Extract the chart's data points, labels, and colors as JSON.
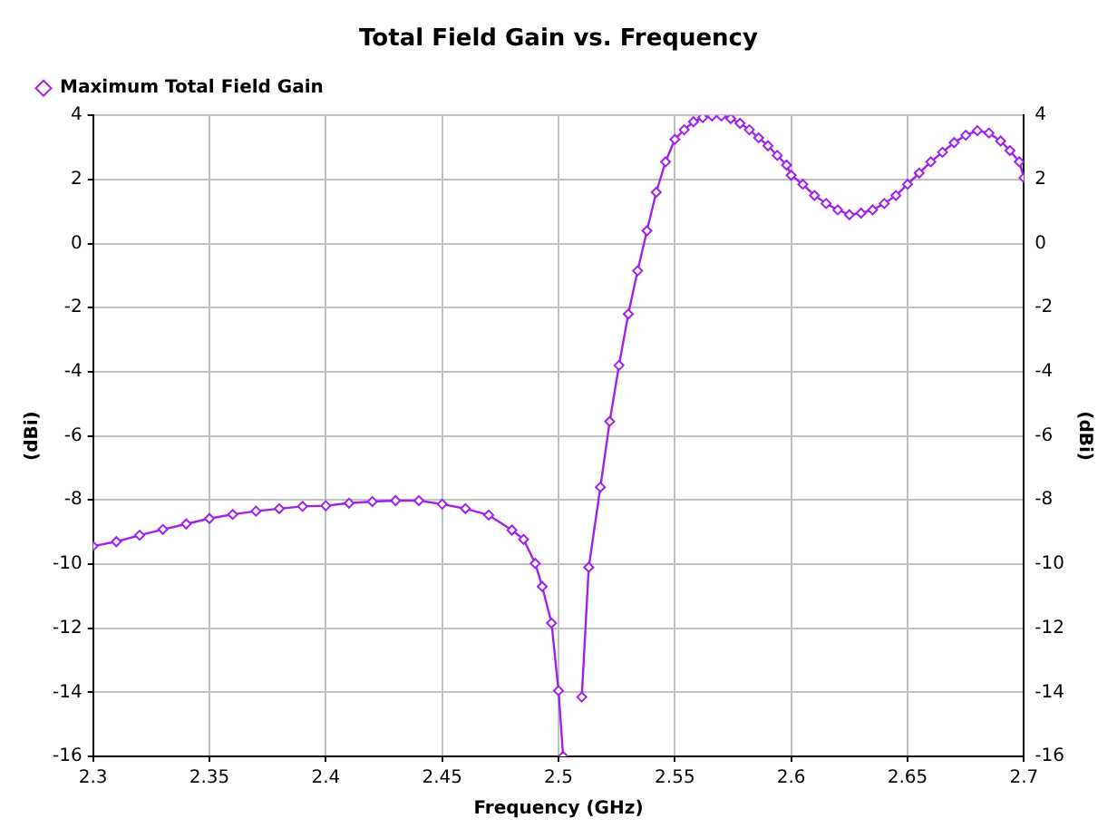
{
  "chart_data": {
    "type": "line",
    "title": "Total Field Gain vs. Frequency",
    "xlabel": "Frequency (GHz)",
    "ylabel": "(dBi)",
    "y2label": "(dBi)",
    "series": [
      {
        "name": "Maximum Total Field Gain",
        "color": "#a020f0",
        "x": [
          2.3,
          2.31,
          2.32,
          2.33,
          2.34,
          2.35,
          2.36,
          2.37,
          2.38,
          2.39,
          2.4,
          2.41,
          2.42,
          2.43,
          2.44,
          2.45,
          2.46,
          2.47,
          2.48,
          2.485,
          2.49,
          2.493,
          2.497,
          2.5,
          2.502,
          2.506,
          2.51,
          2.513,
          2.518,
          2.522,
          2.526,
          2.53,
          2.534,
          2.538,
          2.542,
          2.546,
          2.55,
          2.554,
          2.558,
          2.562,
          2.566,
          2.57,
          2.574,
          2.578,
          2.582,
          2.586,
          2.59,
          2.594,
          2.598,
          2.6,
          2.605,
          2.61,
          2.615,
          2.62,
          2.625,
          2.63,
          2.635,
          2.64,
          2.645,
          2.65,
          2.655,
          2.66,
          2.665,
          2.67,
          2.675,
          2.68,
          2.685,
          2.69,
          2.694,
          2.698,
          2.7
        ],
        "values": [
          -9.44,
          -9.3,
          -9.1,
          -8.92,
          -8.75,
          -8.58,
          -8.45,
          -8.35,
          -8.27,
          -8.2,
          -8.18,
          -8.1,
          -8.05,
          -8.02,
          -8.02,
          -8.13,
          -8.27,
          -8.47,
          -8.94,
          -9.23,
          -9.98,
          -10.7,
          -11.84,
          -13.95,
          -16,
          null,
          -14.15,
          -10.1,
          -7.6,
          -5.55,
          -3.8,
          -2.2,
          -0.85,
          0.4,
          1.6,
          2.55,
          3.25,
          3.55,
          3.8,
          3.93,
          3.98,
          3.98,
          3.9,
          3.75,
          3.55,
          3.3,
          3.05,
          2.75,
          2.45,
          2.13,
          1.85,
          1.5,
          1.25,
          1.05,
          0.9,
          0.95,
          1.05,
          1.25,
          1.5,
          1.85,
          2.2,
          2.55,
          2.85,
          3.15,
          3.38,
          3.52,
          3.45,
          3.2,
          2.9,
          2.55,
          2.05
        ]
      }
    ],
    "xlim": [
      2.3,
      2.7
    ],
    "xticks": [
      2.3,
      2.35,
      2.4,
      2.45,
      2.5,
      2.55,
      2.6,
      2.65,
      2.7
    ],
    "ylim": [
      -16,
      4
    ],
    "yticks": [
      -16,
      -14,
      -12,
      -10,
      -8,
      -6,
      -4,
      -2,
      0,
      2,
      4
    ],
    "y2lim": [
      -16,
      4
    ],
    "y2ticks": [
      -16,
      -14,
      -12,
      -10,
      -8,
      -6,
      -4,
      -2,
      0,
      2,
      4
    ],
    "grid": true,
    "legend": "top left",
    "marker": "diamond",
    "line_style": "solid"
  }
}
